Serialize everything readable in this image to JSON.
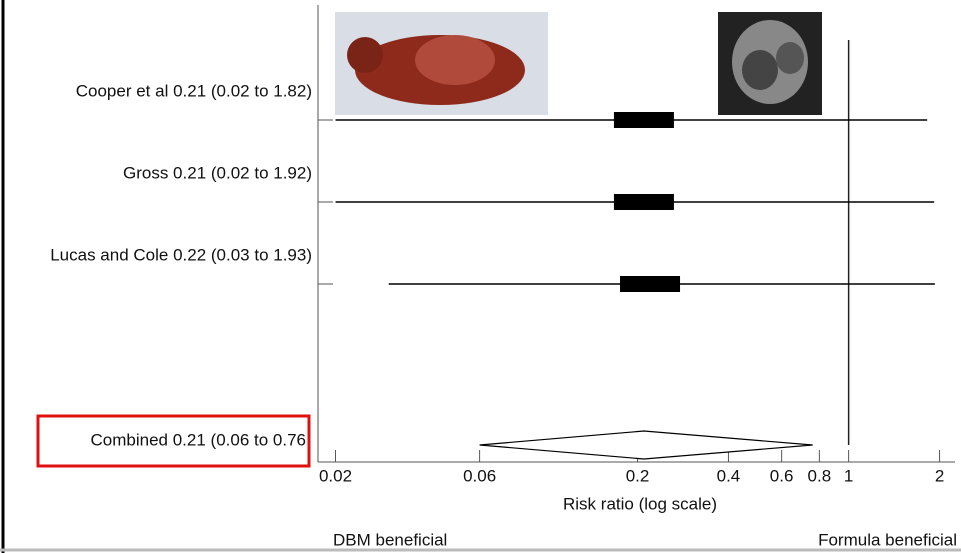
{
  "chart_data": {
    "type": "forest",
    "categories": [
      "Cooper et al 0.21 (0.02 to 1.82)",
      "Gross 0.21 (0.02 to 1.92)",
      "Lucas and Cole 0.22 (0.03 to 1.93)"
    ],
    "values": [
      0.21,
      0.21,
      0.22
    ],
    "lower": [
      0.02,
      0.02,
      0.03
    ],
    "upper": [
      1.82,
      1.92,
      1.93
    ],
    "pooled": {
      "label": "Combined 0.21 (0.06 to 0.76",
      "value": 0.21,
      "lower": 0.06,
      "upper": 0.76
    },
    "x_label": "Risk ratio (log scale)",
    "left_annotation": "DBM beneficial",
    "right_annotation": "Formula beneficial",
    "log_x": true,
    "xlim": [
      0.0175,
      2.25
    ],
    "xticks": [
      0.02,
      0.06,
      0.2,
      0.4,
      0.6,
      0.8,
      1,
      2
    ],
    "reference": 1,
    "color": "#000000"
  }
}
